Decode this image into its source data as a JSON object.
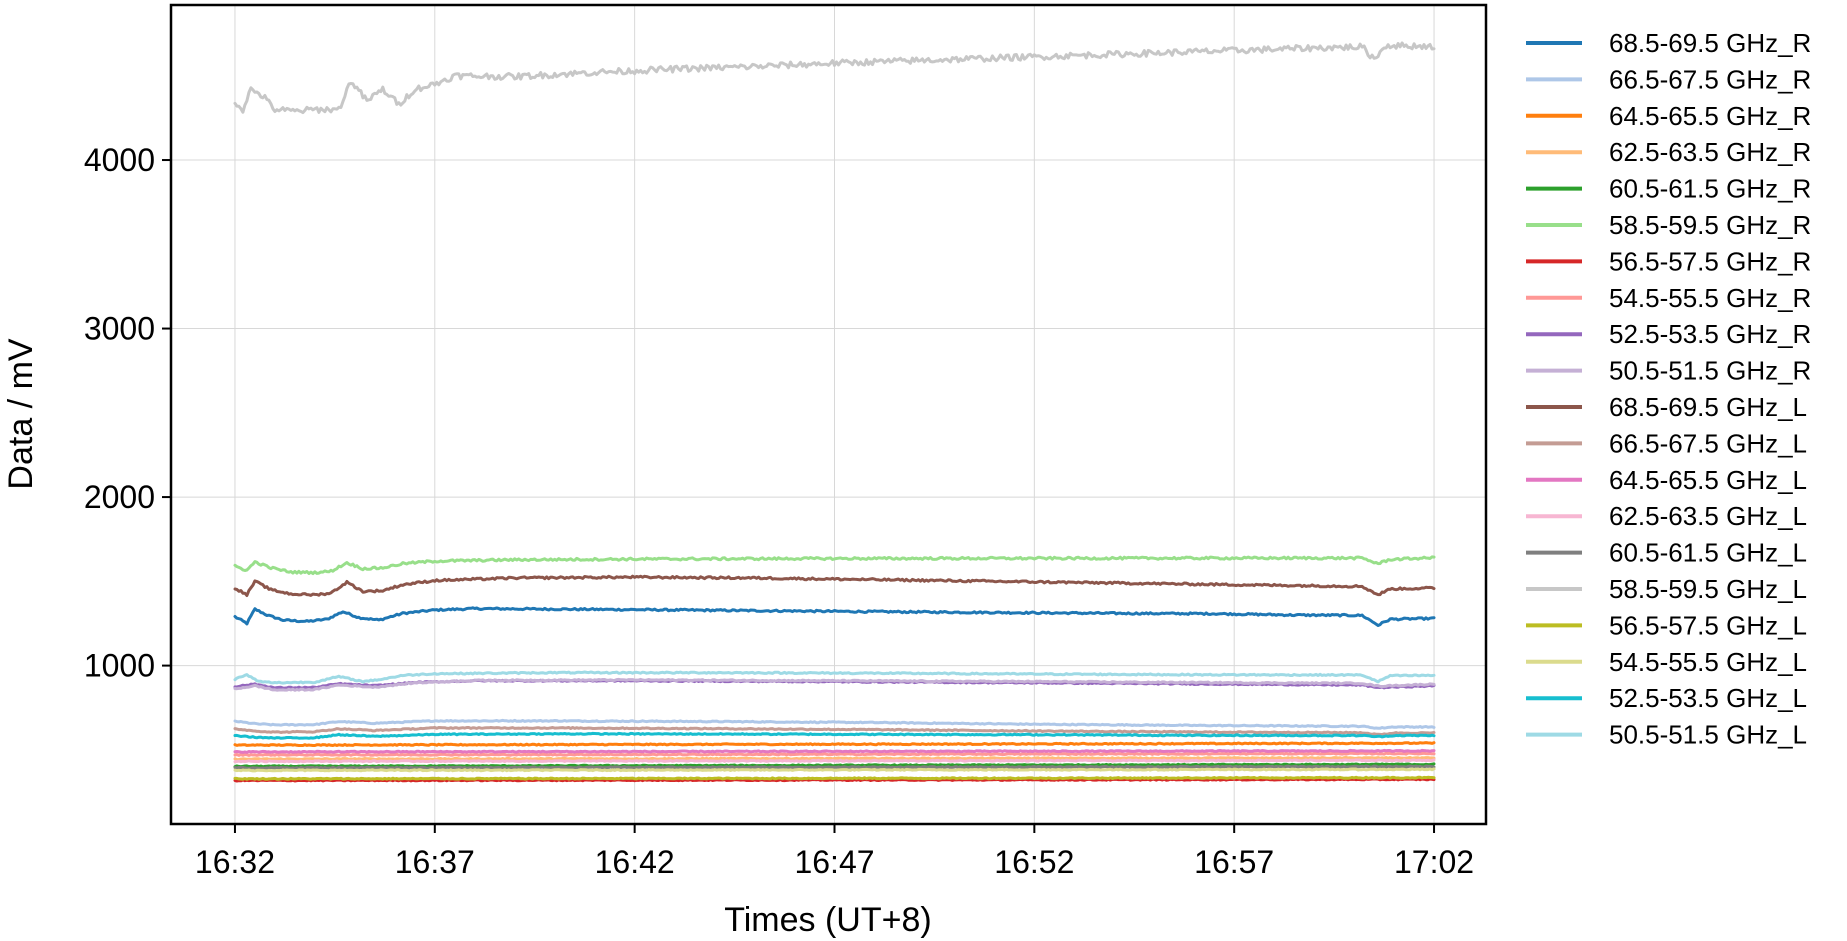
{
  "chart_data": {
    "type": "line",
    "title": "",
    "xlabel": "Times (UT+8)",
    "ylabel": "Data / mV",
    "x_start_min": 0,
    "x_end_min": 30,
    "x_ticks": [
      {
        "value": 0,
        "label": "16:32"
      },
      {
        "value": 5,
        "label": "16:37"
      },
      {
        "value": 10,
        "label": "16:42"
      },
      {
        "value": 15,
        "label": "16:47"
      },
      {
        "value": 20,
        "label": "16:52"
      },
      {
        "value": 25,
        "label": "16:57"
      },
      {
        "value": 30,
        "label": "17:02"
      }
    ],
    "y_ticks": [
      {
        "value": 1000,
        "label": "1000"
      },
      {
        "value": 2000,
        "label": "2000"
      },
      {
        "value": 3000,
        "label": "3000"
      },
      {
        "value": 4000,
        "label": "4000"
      }
    ],
    "xlim": [
      -1.6,
      31.3
    ],
    "ylim": [
      60,
      4920
    ],
    "grid": true,
    "legend_position": "outside-right",
    "series": [
      {
        "name": "68.5-69.5 GHz_R",
        "color": "#1f77b4",
        "values": [
          [
            0,
            1290
          ],
          [
            0.3,
            1250
          ],
          [
            0.5,
            1335
          ],
          [
            0.8,
            1300
          ],
          [
            1.2,
            1270
          ],
          [
            1.8,
            1262
          ],
          [
            2.3,
            1275
          ],
          [
            2.7,
            1320
          ],
          [
            3.1,
            1285
          ],
          [
            3.6,
            1270
          ],
          [
            4.2,
            1310
          ],
          [
            5,
            1330
          ],
          [
            6,
            1338
          ],
          [
            8,
            1335
          ],
          [
            10,
            1332
          ],
          [
            13,
            1326
          ],
          [
            16,
            1320
          ],
          [
            19,
            1315
          ],
          [
            22,
            1310
          ],
          [
            24.5,
            1308
          ],
          [
            26.5,
            1300
          ],
          [
            28.2,
            1298
          ],
          [
            28.6,
            1240
          ],
          [
            28.9,
            1275
          ],
          [
            30,
            1280
          ]
        ]
      },
      {
        "name": "66.5-67.5 GHz_R",
        "color": "#aec7e8",
        "values": [
          [
            0,
            670
          ],
          [
            0.5,
            655
          ],
          [
            1,
            648
          ],
          [
            2,
            650
          ],
          [
            2.6,
            668
          ],
          [
            3.5,
            658
          ],
          [
            5,
            672
          ],
          [
            8,
            672
          ],
          [
            12,
            668
          ],
          [
            16,
            662
          ],
          [
            20,
            652
          ],
          [
            24,
            645
          ],
          [
            28.2,
            640
          ],
          [
            28.6,
            628
          ],
          [
            29,
            636
          ],
          [
            30,
            636
          ]
        ]
      },
      {
        "name": "64.5-65.5 GHz_R",
        "color": "#ff7f0e",
        "values": [
          [
            0,
            528
          ],
          [
            10,
            532
          ],
          [
            20,
            535
          ],
          [
            30,
            540
          ]
        ]
      },
      {
        "name": "62.5-63.5 GHz_R",
        "color": "#ffbb78",
        "values": [
          [
            0,
            445
          ],
          [
            10,
            447
          ],
          [
            20,
            450
          ],
          [
            30,
            452
          ]
        ]
      },
      {
        "name": "60.5-61.5 GHz_R",
        "color": "#2ca02c",
        "values": [
          [
            0,
            402
          ],
          [
            10,
            406
          ],
          [
            20,
            410
          ],
          [
            30,
            414
          ]
        ]
      },
      {
        "name": "58.5-59.5 GHz_R",
        "color": "#98df8a",
        "values": [
          [
            0,
            1590
          ],
          [
            0.3,
            1565
          ],
          [
            0.5,
            1615
          ],
          [
            0.9,
            1580
          ],
          [
            1.4,
            1555
          ],
          [
            2,
            1552
          ],
          [
            2.4,
            1560
          ],
          [
            2.8,
            1610
          ],
          [
            3.2,
            1575
          ],
          [
            3.7,
            1580
          ],
          [
            4.2,
            1605
          ],
          [
            5,
            1620
          ],
          [
            7,
            1628
          ],
          [
            10,
            1632
          ],
          [
            14,
            1635
          ],
          [
            18,
            1636
          ],
          [
            22,
            1637
          ],
          [
            26,
            1638
          ],
          [
            28.2,
            1638
          ],
          [
            28.6,
            1605
          ],
          [
            28.9,
            1630
          ],
          [
            30,
            1640
          ]
        ]
      },
      {
        "name": "56.5-57.5 GHz_R",
        "color": "#d62728",
        "values": [
          [
            0,
            318
          ],
          [
            10,
            320
          ],
          [
            20,
            322
          ],
          [
            30,
            325
          ]
        ]
      },
      {
        "name": "54.5-55.5 GHz_R",
        "color": "#ff9896",
        "values": [
          [
            0,
            470
          ],
          [
            10,
            472
          ],
          [
            20,
            475
          ],
          [
            30,
            478
          ]
        ]
      },
      {
        "name": "52.5-53.5 GHz_R",
        "color": "#9467bd",
        "values": [
          [
            0,
            875
          ],
          [
            0.5,
            890
          ],
          [
            1,
            868
          ],
          [
            2,
            870
          ],
          [
            2.6,
            892
          ],
          [
            3.5,
            880
          ],
          [
            4.5,
            900
          ],
          [
            6,
            910
          ],
          [
            10,
            910
          ],
          [
            15,
            905
          ],
          [
            20,
            898
          ],
          [
            25,
            890
          ],
          [
            28.2,
            885
          ],
          [
            28.6,
            870
          ],
          [
            30,
            880
          ]
        ]
      },
      {
        "name": "50.5-51.5 GHz_R",
        "color": "#c5b0d5",
        "values": [
          [
            0,
            862
          ],
          [
            0.5,
            880
          ],
          [
            1,
            855
          ],
          [
            2,
            858
          ],
          [
            2.6,
            885
          ],
          [
            3.5,
            872
          ],
          [
            4.5,
            898
          ],
          [
            6,
            912
          ],
          [
            10,
            915
          ],
          [
            15,
            910
          ],
          [
            20,
            905
          ],
          [
            25,
            898
          ],
          [
            28.2,
            895
          ],
          [
            28.6,
            878
          ],
          [
            30,
            890
          ]
        ]
      },
      {
        "name": "68.5-69.5 GHz_L",
        "color": "#8c564b",
        "values": [
          [
            0,
            1460
          ],
          [
            0.3,
            1420
          ],
          [
            0.5,
            1500
          ],
          [
            0.9,
            1450
          ],
          [
            1.4,
            1425
          ],
          [
            2,
            1420
          ],
          [
            2.4,
            1430
          ],
          [
            2.8,
            1495
          ],
          [
            3.2,
            1440
          ],
          [
            3.7,
            1445
          ],
          [
            4.2,
            1480
          ],
          [
            5,
            1505
          ],
          [
            7,
            1520
          ],
          [
            10,
            1525
          ],
          [
            13,
            1520
          ],
          [
            16,
            1510
          ],
          [
            19,
            1500
          ],
          [
            22,
            1490
          ],
          [
            25,
            1480
          ],
          [
            28.2,
            1470
          ],
          [
            28.6,
            1420
          ],
          [
            28.9,
            1455
          ],
          [
            30,
            1460
          ]
        ]
      },
      {
        "name": "66.5-67.5 GHz_L",
        "color": "#c49c94",
        "values": [
          [
            0,
            625
          ],
          [
            0.5,
            612
          ],
          [
            1,
            605
          ],
          [
            2,
            608
          ],
          [
            2.6,
            625
          ],
          [
            3.5,
            615
          ],
          [
            5,
            630
          ],
          [
            8,
            630
          ],
          [
            12,
            626
          ],
          [
            16,
            620
          ],
          [
            20,
            612
          ],
          [
            24,
            606
          ],
          [
            28.2,
            602
          ],
          [
            28.6,
            590
          ],
          [
            29,
            600
          ],
          [
            30,
            600
          ]
        ]
      },
      {
        "name": "64.5-65.5 GHz_L",
        "color": "#e377c2",
        "values": [
          [
            0,
            488
          ],
          [
            10,
            490
          ],
          [
            20,
            492
          ],
          [
            30,
            494
          ]
        ]
      },
      {
        "name": "62.5-63.5 GHz_L",
        "color": "#f7b6d2",
        "values": [
          [
            0,
            432
          ],
          [
            10,
            434
          ],
          [
            20,
            436
          ],
          [
            30,
            438
          ]
        ]
      },
      {
        "name": "60.5-61.5 GHz_L",
        "color": "#7f7f7f",
        "values": [
          [
            0,
            393
          ],
          [
            10,
            396
          ],
          [
            20,
            398
          ],
          [
            30,
            401
          ]
        ]
      },
      {
        "name": "58.5-59.5 GHz_L",
        "color": "#c7c7c7",
        "values": [
          [
            0,
            4340
          ],
          [
            0.2,
            4300
          ],
          [
            0.4,
            4420
          ],
          [
            0.7,
            4380
          ],
          [
            1,
            4300
          ],
          [
            1.5,
            4290
          ],
          [
            2,
            4300
          ],
          [
            2.6,
            4300
          ],
          [
            2.9,
            4470
          ],
          [
            3.3,
            4350
          ],
          [
            3.7,
            4420
          ],
          [
            4.1,
            4330
          ],
          [
            4.5,
            4420
          ],
          [
            5,
            4450
          ],
          [
            5.5,
            4500
          ],
          [
            7,
            4495
          ],
          [
            9,
            4520
          ],
          [
            11,
            4540
          ],
          [
            13,
            4555
          ],
          [
            15,
            4575
          ],
          [
            17,
            4590
          ],
          [
            19,
            4605
          ],
          [
            21,
            4620
          ],
          [
            23,
            4635
          ],
          [
            25,
            4650
          ],
          [
            27,
            4665
          ],
          [
            28.2,
            4672
          ],
          [
            28.5,
            4600
          ],
          [
            28.8,
            4680
          ],
          [
            30,
            4675
          ]
        ]
      },
      {
        "name": "56.5-57.5 GHz_L",
        "color": "#bcbd22",
        "values": [
          [
            0,
            328
          ],
          [
            10,
            330
          ],
          [
            20,
            332
          ],
          [
            30,
            335
          ]
        ]
      },
      {
        "name": "54.5-55.5 GHz_L",
        "color": "#dbdb8d",
        "values": [
          [
            0,
            378
          ],
          [
            10,
            380
          ],
          [
            20,
            382
          ],
          [
            30,
            384
          ]
        ]
      },
      {
        "name": "52.5-53.5 GHz_L",
        "color": "#17becf",
        "values": [
          [
            0,
            585
          ],
          [
            0.5,
            575
          ],
          [
            1,
            570
          ],
          [
            2,
            572
          ],
          [
            2.6,
            590
          ],
          [
            3.5,
            580
          ],
          [
            5,
            592
          ],
          [
            8,
            595
          ],
          [
            12,
            594
          ],
          [
            16,
            592
          ],
          [
            20,
            590
          ],
          [
            24,
            586
          ],
          [
            28.2,
            585
          ],
          [
            28.6,
            578
          ],
          [
            29,
            585
          ],
          [
            30,
            585
          ]
        ]
      },
      {
        "name": "50.5-51.5 GHz_L",
        "color": "#9edae5",
        "values": [
          [
            0,
            920
          ],
          [
            0.3,
            945
          ],
          [
            0.6,
            905
          ],
          [
            1,
            898
          ],
          [
            2,
            902
          ],
          [
            2.6,
            935
          ],
          [
            3.2,
            905
          ],
          [
            3.7,
            920
          ],
          [
            4.2,
            942
          ],
          [
            5,
            952
          ],
          [
            8,
            958
          ],
          [
            12,
            958
          ],
          [
            16,
            955
          ],
          [
            20,
            950
          ],
          [
            24,
            946
          ],
          [
            28.2,
            944
          ],
          [
            28.6,
            905
          ],
          [
            28.9,
            940
          ],
          [
            30,
            942
          ]
        ]
      }
    ]
  }
}
